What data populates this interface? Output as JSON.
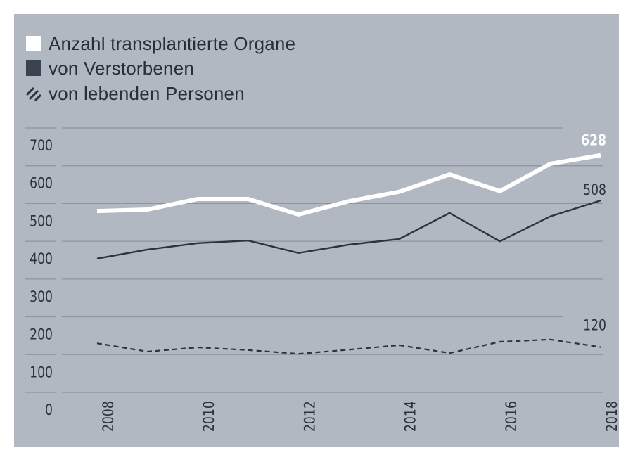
{
  "chart_data": {
    "type": "line",
    "legend": {
      "placement": "top-left",
      "entries": [
        {
          "label": "Anzahl transplantierte Organe",
          "swatch": "solid-white"
        },
        {
          "label": "von Verstorbenen",
          "swatch": "solid-dark"
        },
        {
          "label": "von lebenden Personen",
          "swatch": "hatched"
        }
      ]
    },
    "x": [
      2008,
      2009,
      2010,
      2011,
      2012,
      2013,
      2014,
      2015,
      2016,
      2017,
      2018
    ],
    "x_tick_labels": [
      "2008",
      "2010",
      "2012",
      "2014",
      "2016",
      "2018"
    ],
    "y_tick_labels": [
      "0",
      "100",
      "200",
      "300",
      "400",
      "500",
      "600",
      "700"
    ],
    "ylim": [
      0,
      700
    ],
    "grid": true,
    "series": [
      {
        "name": "Anzahl transplantierte Organe",
        "color": "#ffffff",
        "style": "solid-thick",
        "values": [
          480,
          484,
          512,
          512,
          471,
          506,
          531,
          577,
          533,
          605,
          628
        ],
        "end_label": "628"
      },
      {
        "name": "von Verstorbenen",
        "color": "#2b333c",
        "style": "solid",
        "values": [
          354,
          378,
          395,
          402,
          369,
          391,
          406,
          475,
          400,
          466,
          508
        ],
        "end_label": "508"
      },
      {
        "name": "von lebenden Personen",
        "color": "#2b333c",
        "style": "dashed",
        "values": [
          130,
          108,
          119,
          112,
          102,
          113,
          125,
          104,
          134,
          140,
          120
        ],
        "end_label": "120"
      }
    ],
    "colors": {
      "background": "#b1b8c1",
      "grid": "#8e959e",
      "text": "#26303a"
    }
  }
}
